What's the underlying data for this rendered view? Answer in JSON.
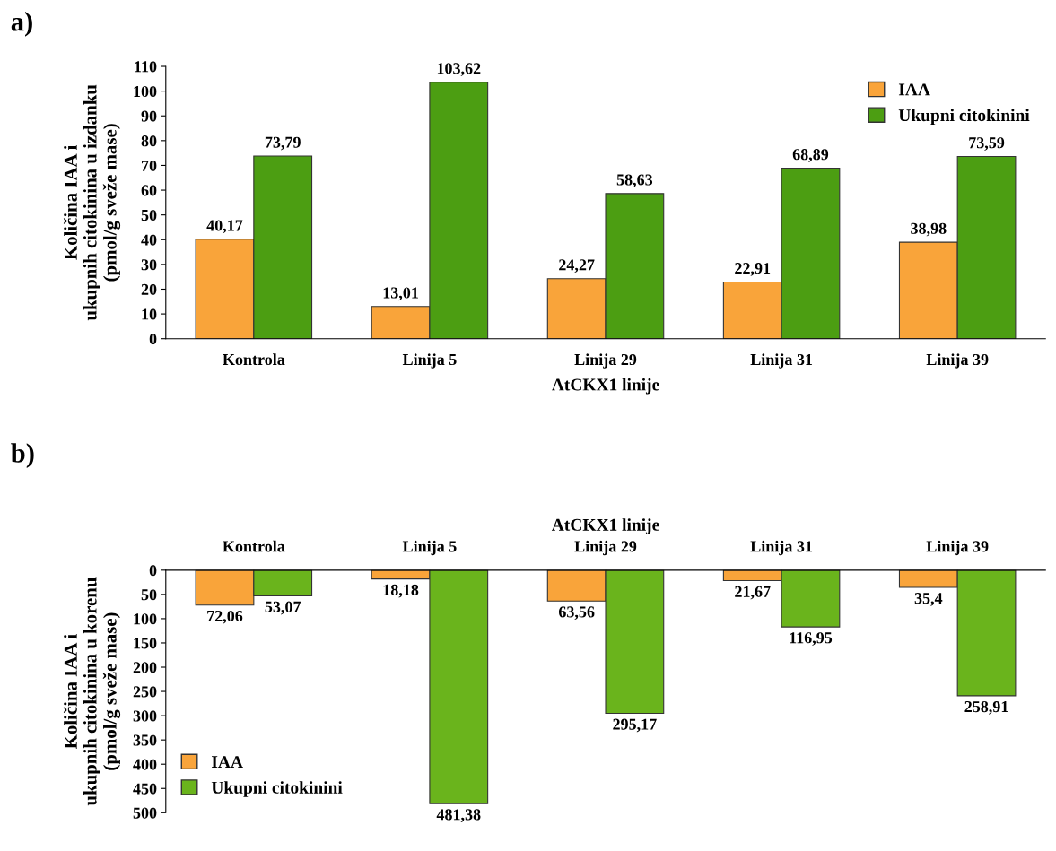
{
  "chart_data": [
    {
      "type": "bar",
      "xlabel": "AtCKX1 linije",
      "ylabel": "Količina IAA i\nukupnih citokinina u izdanku\n(pmol/g sveže mase)",
      "annotations": [
        "a)"
      ],
      "categories": [
        "Kontrola",
        "Linija 5",
        "Linija 29",
        "Linija 31",
        "Linija 39"
      ],
      "series": [
        {
          "name": "IAA",
          "color": "#f9a43a",
          "values": [
            40.17,
            13.01,
            24.27,
            22.91,
            38.98
          ],
          "value_labels": [
            "40,17",
            "13,01",
            "24,27",
            "22,91",
            "38,98"
          ]
        },
        {
          "name": "Ukupni citokinini",
          "color": "#4c9e12",
          "values": [
            73.79,
            103.62,
            58.63,
            68.89,
            73.59
          ],
          "value_labels": [
            "73,79",
            "103,62",
            "58,63",
            "68,89",
            "73,59"
          ]
        }
      ],
      "ylim": [
        0,
        110
      ],
      "yticks": [
        0,
        10,
        20,
        30,
        40,
        50,
        60,
        70,
        80,
        90,
        100,
        110
      ],
      "legend": "top right",
      "grid": false
    },
    {
      "type": "bar",
      "xlabel": "AtCKX1 linije",
      "ylabel": "Količina IAA i\nukupnih citokinina u korenu\n(pmol/g sveže mase)",
      "annotations": [
        "b)"
      ],
      "categories": [
        "Kontrola",
        "Linija 5",
        "Linija 29",
        "Linija 31",
        "Linija 39"
      ],
      "series": [
        {
          "name": "IAA",
          "color": "#f9a43a",
          "values": [
            72.06,
            18.18,
            63.56,
            21.67,
            35.4
          ],
          "value_labels": [
            "72,06",
            "18,18",
            "63,56",
            "21,67",
            "35,4"
          ]
        },
        {
          "name": "Ukupni citokinini",
          "color": "#6ab41c",
          "values": [
            53.07,
            481.38,
            295.17,
            116.95,
            258.91
          ],
          "value_labels": [
            "53,07",
            "481,38",
            "295,17",
            "116,95",
            "258,91"
          ]
        }
      ],
      "ylim": [
        500,
        0
      ],
      "yticks": [
        0,
        50,
        100,
        150,
        200,
        250,
        300,
        350,
        400,
        450,
        500
      ],
      "legend": "bottom left",
      "grid": false
    }
  ]
}
